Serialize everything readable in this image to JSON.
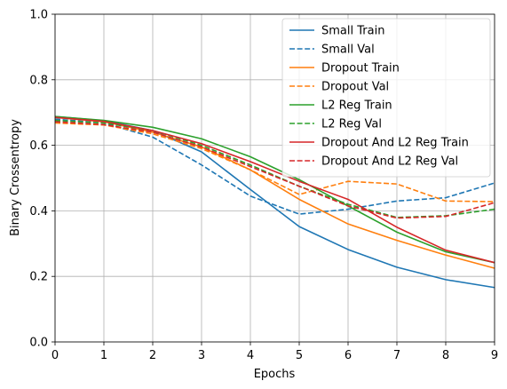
{
  "chart_data": {
    "type": "line",
    "title": "",
    "xlabel": "Epochs",
    "ylabel": "Binary Crossentropy",
    "xlim": [
      0,
      9
    ],
    "ylim": [
      0.0,
      1.0
    ],
    "xticks": [
      "0",
      "1",
      "2",
      "3",
      "4",
      "5",
      "6",
      "7",
      "8",
      "9"
    ],
    "yticks": [
      "0.0",
      "0.2",
      "0.4",
      "0.6",
      "0.8",
      "1.0"
    ],
    "grid": true,
    "legend_position": "top-right",
    "x": [
      0,
      1,
      2,
      3,
      4,
      5,
      6,
      7,
      8,
      9
    ],
    "series": [
      {
        "name": "Small Train",
        "color": "#1f77b4",
        "dash": "solid",
        "values": [
          0.688,
          0.675,
          0.645,
          0.58,
          0.465,
          0.352,
          0.282,
          0.228,
          0.19,
          0.166
        ]
      },
      {
        "name": "Small Val",
        "color": "#1f77b4",
        "dash": "dashed",
        "values": [
          0.68,
          0.668,
          0.625,
          0.54,
          0.445,
          0.39,
          0.405,
          0.43,
          0.44,
          0.485
        ]
      },
      {
        "name": "Dropout Train",
        "color": "#ff7f0e",
        "dash": "solid",
        "values": [
          0.685,
          0.672,
          0.64,
          0.595,
          0.525,
          0.435,
          0.36,
          0.31,
          0.265,
          0.225
        ]
      },
      {
        "name": "Dropout Val",
        "color": "#ff7f0e",
        "dash": "dashed",
        "values": [
          0.668,
          0.662,
          0.635,
          0.59,
          0.525,
          0.45,
          0.49,
          0.482,
          0.43,
          0.428
        ]
      },
      {
        "name": "L2 Reg Train",
        "color": "#2ca02c",
        "dash": "solid",
        "values": [
          0.688,
          0.676,
          0.655,
          0.62,
          0.565,
          0.495,
          0.415,
          0.335,
          0.275,
          0.242
        ]
      },
      {
        "name": "L2 Reg Val",
        "color": "#2ca02c",
        "dash": "dashed",
        "values": [
          0.676,
          0.668,
          0.645,
          0.6,
          0.54,
          0.475,
          0.42,
          0.38,
          0.385,
          0.405
        ]
      },
      {
        "name": "Dropout And L2 Reg Train",
        "color": "#d62728",
        "dash": "solid",
        "values": [
          0.685,
          0.673,
          0.645,
          0.605,
          0.55,
          0.49,
          0.435,
          0.35,
          0.28,
          0.242
        ]
      },
      {
        "name": "Dropout And L2 Reg Val",
        "color": "#d62728",
        "dash": "dashed",
        "values": [
          0.672,
          0.663,
          0.64,
          0.595,
          0.535,
          0.475,
          0.415,
          0.378,
          0.383,
          0.425
        ]
      }
    ]
  }
}
